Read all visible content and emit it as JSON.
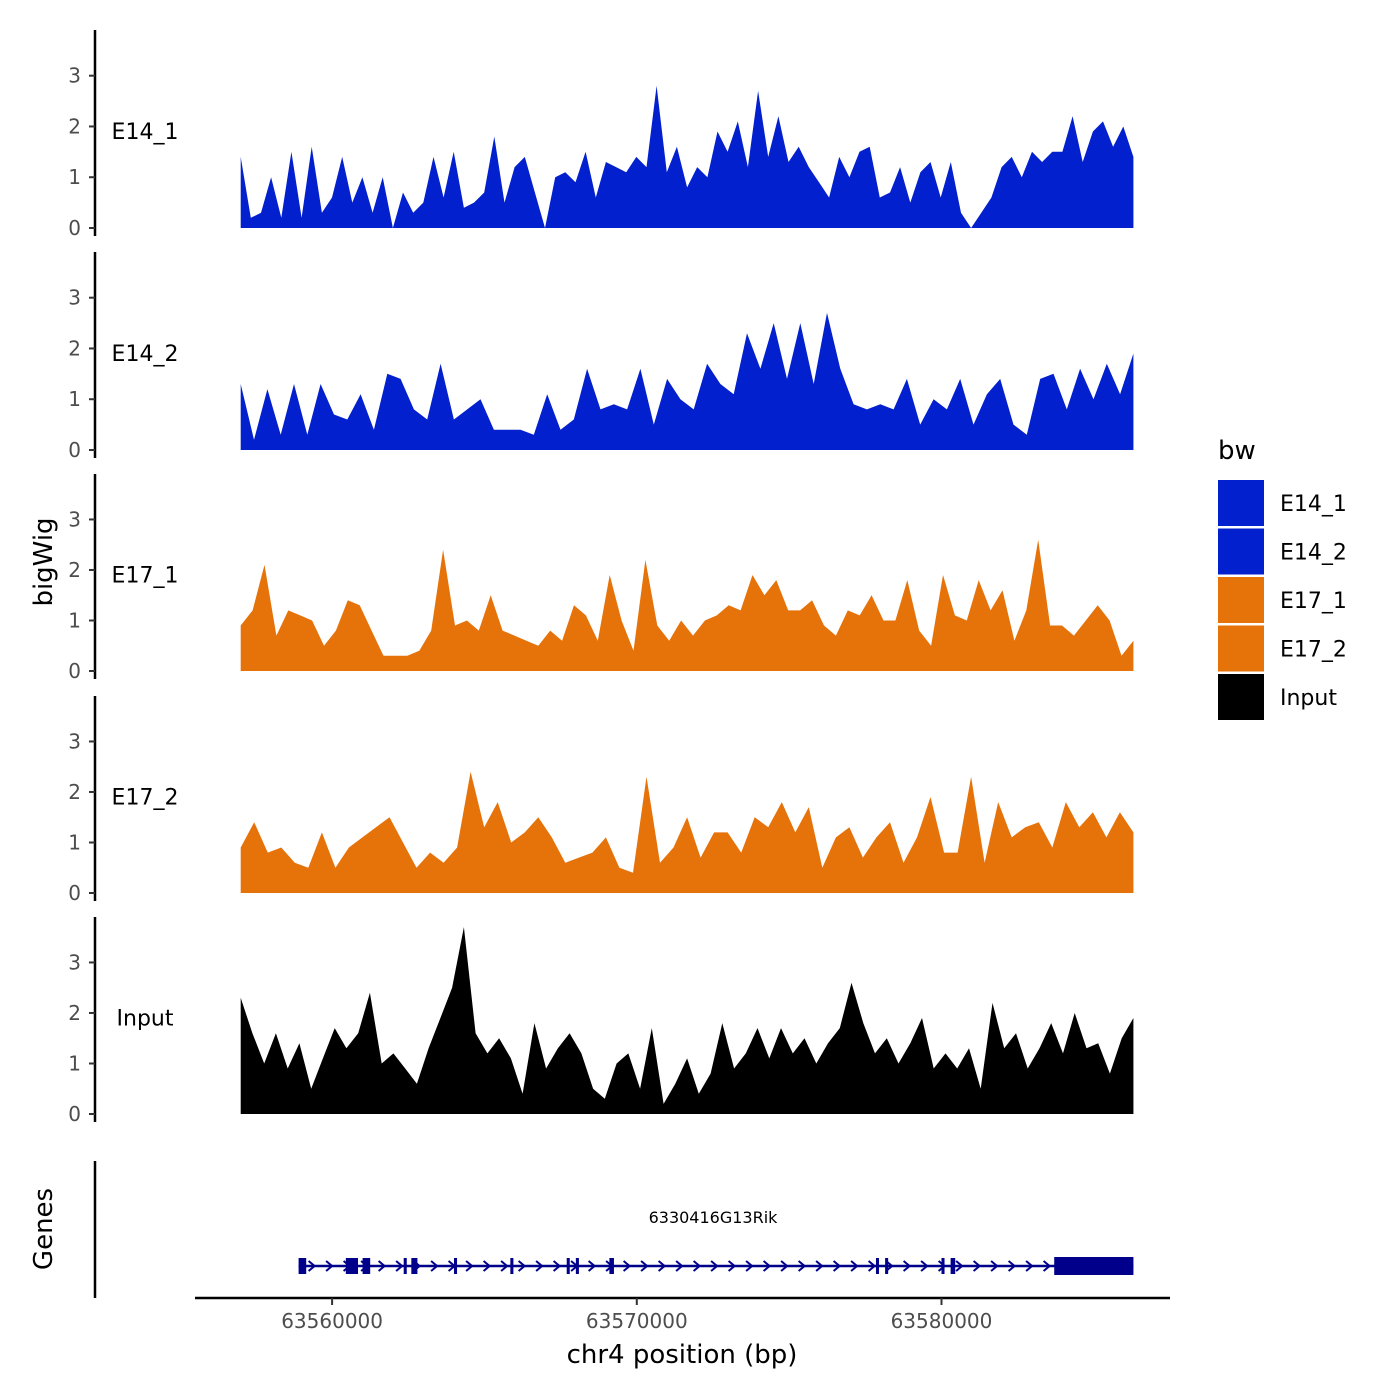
{
  "chart_data": {
    "type": "area",
    "chromosome": "chr4",
    "xlabel": "chr4 position (bp)",
    "ylabel": "bigWig",
    "genes_label": "Genes",
    "xlim": [
      63555500,
      63587500
    ],
    "data_range": [
      63557000,
      63586300
    ],
    "x_ticks": [
      63560000,
      63570000,
      63580000
    ],
    "x_tick_labels": [
      "63560000",
      "63570000",
      "63580000"
    ],
    "ylim": [
      0,
      3.9
    ],
    "y_ticks": [
      0,
      1,
      2,
      3
    ],
    "y_tick_labels": [
      "0",
      "1",
      "2",
      "3"
    ],
    "legend": {
      "title": "bw",
      "placement": "right",
      "entries": [
        {
          "label": "E14_1",
          "color": "#0320CE"
        },
        {
          "label": "E14_2",
          "color": "#0320CE"
        },
        {
          "label": "E17_1",
          "color": "#E6720A"
        },
        {
          "label": "E17_2",
          "color": "#E6720A"
        },
        {
          "label": "Input",
          "color": "#000000"
        }
      ]
    },
    "series": [
      {
        "name": "E14_1",
        "color": "#0320CE",
        "values": [
          1.4,
          0.2,
          0.3,
          1.0,
          0.2,
          1.5,
          0.2,
          1.6,
          0.3,
          0.6,
          1.4,
          0.5,
          1.0,
          0.3,
          1.0,
          0,
          0.7,
          0.3,
          0.5,
          1.4,
          0.6,
          1.5,
          0.4,
          0.5,
          0.7,
          1.8,
          0.5,
          1.2,
          1.4,
          0.7,
          0,
          1.0,
          1.1,
          0.9,
          1.5,
          0.6,
          1.3,
          1.2,
          1.1,
          1.4,
          1.2,
          2.8,
          1.1,
          1.6,
          0.8,
          1.2,
          1.0,
          1.9,
          1.5,
          2.1,
          1.2,
          2.7,
          1.4,
          2.2,
          1.3,
          1.6,
          1.2,
          0.9,
          0.6,
          1.4,
          1.0,
          1.5,
          1.6,
          0.6,
          0.7,
          1.2,
          0.5,
          1.1,
          1.3,
          0.6,
          1.3,
          0.3,
          0,
          0.3,
          0.6,
          1.2,
          1.4,
          1.0,
          1.5,
          1.3,
          1.5,
          1.5,
          2.2,
          1.3,
          1.9,
          2.1,
          1.6,
          2.0,
          1.4
        ]
      },
      {
        "name": "E14_2",
        "color": "#0320CE",
        "values": [
          1.3,
          0.2,
          1.2,
          0.3,
          1.3,
          0.3,
          1.3,
          0.7,
          0.6,
          1.1,
          0.4,
          1.5,
          1.4,
          0.8,
          0.6,
          1.7,
          0.6,
          0.8,
          1.0,
          0.4,
          0.4,
          0.4,
          0.3,
          1.1,
          0.4,
          0.6,
          1.6,
          0.8,
          0.9,
          0.8,
          1.6,
          0.5,
          1.4,
          1.0,
          0.8,
          1.7,
          1.3,
          1.1,
          2.3,
          1.6,
          2.5,
          1.4,
          2.5,
          1.3,
          2.7,
          1.6,
          0.9,
          0.8,
          0.9,
          0.8,
          1.4,
          0.5,
          1.0,
          0.8,
          1.4,
          0.5,
          1.1,
          1.4,
          0.5,
          0.3,
          1.4,
          1.5,
          0.8,
          1.6,
          1.0,
          1.7,
          1.1,
          1.9
        ]
      },
      {
        "name": "E17_1",
        "color": "#E6720A",
        "values": [
          0.9,
          1.2,
          2.1,
          0.7,
          1.2,
          1.1,
          1.0,
          0.5,
          0.8,
          1.4,
          1.3,
          0.8,
          0.3,
          0.3,
          0.3,
          0.4,
          0.8,
          2.4,
          0.9,
          1.0,
          0.8,
          1.5,
          0.8,
          0.7,
          0.6,
          0.5,
          0.8,
          0.6,
          1.3,
          1.1,
          0.6,
          1.9,
          1.0,
          0.4,
          2.2,
          0.9,
          0.6,
          1.0,
          0.7,
          1.0,
          1.1,
          1.3,
          1.2,
          1.9,
          1.5,
          1.8,
          1.2,
          1.2,
          1.4,
          0.9,
          0.7,
          1.2,
          1.1,
          1.5,
          1.0,
          1.0,
          1.8,
          0.8,
          0.5,
          1.9,
          1.1,
          1.0,
          1.8,
          1.2,
          1.6,
          0.6,
          1.2,
          2.6,
          0.9,
          0.9,
          0.7,
          1.0,
          1.3,
          1.0,
          0.3,
          0.6
        ]
      },
      {
        "name": "E17_2",
        "color": "#E6720A",
        "values": [
          0.9,
          1.4,
          0.8,
          0.9,
          0.6,
          0.5,
          1.2,
          0.5,
          0.9,
          1.1,
          1.3,
          1.5,
          1.0,
          0.5,
          0.8,
          0.6,
          0.9,
          2.4,
          1.3,
          1.8,
          1.0,
          1.2,
          1.5,
          1.1,
          0.6,
          0.7,
          0.8,
          1.1,
          0.5,
          0.4,
          2.3,
          0.6,
          0.9,
          1.5,
          0.7,
          1.2,
          1.2,
          0.8,
          1.5,
          1.3,
          1.8,
          1.2,
          1.7,
          0.5,
          1.1,
          1.3,
          0.7,
          1.1,
          1.4,
          0.6,
          1.1,
          1.9,
          0.8,
          0.8,
          2.3,
          0.6,
          1.8,
          1.1,
          1.3,
          1.4,
          0.9,
          1.8,
          1.3,
          1.6,
          1.1,
          1.6,
          1.2
        ]
      },
      {
        "name": "Input",
        "color": "#000000",
        "values": [
          2.3,
          1.6,
          1.0,
          1.6,
          0.9,
          1.4,
          0.5,
          1.1,
          1.7,
          1.3,
          1.6,
          2.4,
          1.0,
          1.2,
          0.9,
          0.6,
          1.3,
          1.9,
          2.5,
          3.7,
          1.6,
          1.2,
          1.5,
          1.1,
          0.4,
          1.8,
          0.9,
          1.3,
          1.6,
          1.2,
          0.5,
          0.3,
          1.0,
          1.2,
          0.5,
          1.7,
          0.2,
          0.6,
          1.1,
          0.4,
          0.8,
          1.8,
          0.9,
          1.2,
          1.7,
          1.1,
          1.7,
          1.2,
          1.5,
          1.0,
          1.4,
          1.7,
          2.6,
          1.8,
          1.2,
          1.5,
          1.0,
          1.4,
          1.9,
          0.9,
          1.2,
          0.9,
          1.3,
          0.5,
          2.2,
          1.3,
          1.6,
          0.9,
          1.3,
          1.8,
          1.2,
          2.0,
          1.3,
          1.4,
          0.8,
          1.5,
          1.9
        ]
      }
    ],
    "gene": {
      "name": "6330416G13Rik",
      "strand": "+",
      "start": 63558900,
      "end": 63586300,
      "exons": [
        [
          63558900,
          63559150
        ],
        [
          63560450,
          63560850
        ],
        [
          63561000,
          63561250
        ],
        [
          63562350,
          63562450
        ],
        [
          63562600,
          63562800
        ],
        [
          63564000,
          63564100
        ],
        [
          63565850,
          63565950
        ],
        [
          63567700,
          63567800
        ],
        [
          63568000,
          63568100
        ],
        [
          63569100,
          63569250
        ],
        [
          63577850,
          63577900
        ],
        [
          63578150,
          63578250
        ],
        [
          63580000,
          63580100
        ],
        [
          63580300,
          63580450
        ],
        [
          63583700,
          63586300
        ]
      ]
    }
  }
}
